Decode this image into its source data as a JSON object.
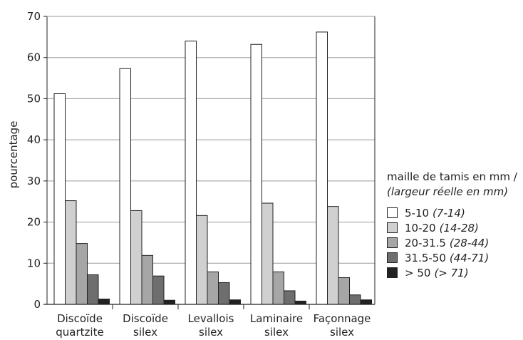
{
  "chart_data": {
    "type": "bar",
    "categories": [
      [
        "Discoïde",
        "quartzite"
      ],
      [
        "Discoïde",
        "silex"
      ],
      [
        "Levallois",
        "silex"
      ],
      [
        "Laminaire",
        "silex"
      ],
      [
        "Façonnage",
        "silex"
      ]
    ],
    "series": [
      {
        "name": "5-10",
        "note": "(7-14)",
        "color": "#ffffff",
        "values": [
          51.2,
          57.3,
          64.0,
          63.2,
          66.2
        ]
      },
      {
        "name": "10-20",
        "note": "(14-28)",
        "color": "#d0d0d0",
        "values": [
          25.2,
          22.8,
          21.6,
          24.6,
          23.8
        ]
      },
      {
        "name": "20-31.5",
        "note": "(28-44)",
        "color": "#a6a6a6",
        "values": [
          14.8,
          11.9,
          7.9,
          7.9,
          6.5
        ]
      },
      {
        "name": "31.5-50",
        "note": "(44-71)",
        "color": "#6e6e6e",
        "values": [
          7.2,
          6.9,
          5.3,
          3.3,
          2.3
        ]
      },
      {
        "name": "> 50",
        "note": "(> 71)",
        "color": "#222222",
        "values": [
          1.3,
          1.0,
          1.1,
          0.8,
          1.1
        ]
      }
    ],
    "ylabel": "pourcentage",
    "xlabel": "",
    "ylim": [
      0,
      70
    ],
    "yticks": [
      0,
      10,
      20,
      30,
      40,
      50,
      60,
      70
    ],
    "grid": true,
    "legend": {
      "title_line1": "maille de tamis en mm /",
      "title_line2": "(largeur réelle en mm)",
      "placement": "right"
    }
  }
}
